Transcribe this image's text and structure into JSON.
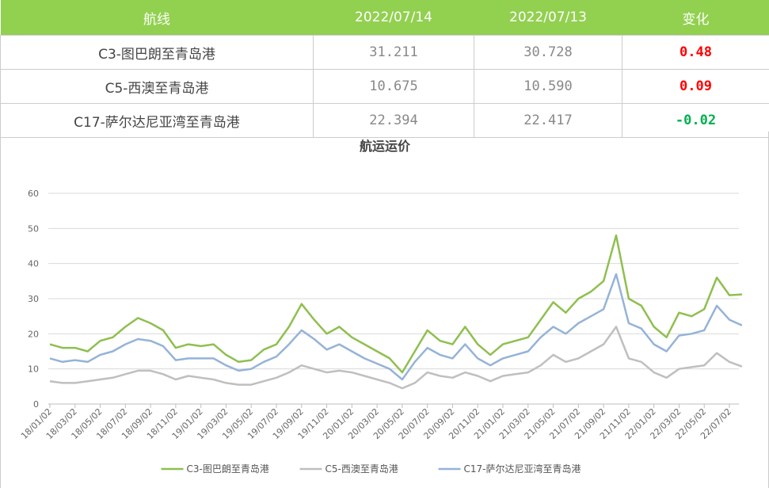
{
  "table": {
    "header": [
      "航线",
      "2022/07/14",
      "2022/07/13",
      "变化"
    ],
    "rows": [
      [
        "C3-图巴朗至青岛港",
        "31.211",
        "30.728",
        "0.48"
      ],
      [
        "C5-西澳至青岛港",
        "10.675",
        "10.590",
        "0.09"
      ],
      [
        "C17-萨尔达尼亚湾至青岛港",
        "22.394",
        "22.417",
        "-0.02"
      ]
    ],
    "header_color": "#92d050",
    "change_colors": [
      "#ff0000",
      "#ff0000",
      "#00b050"
    ]
  },
  "chart_data": {
    "type": "line",
    "title": "航运运价",
    "categories": [
      "18/01/02",
      null,
      "18/03/02",
      null,
      "18/05/02",
      null,
      "18/07/02",
      null,
      "18/09/02",
      null,
      "18/11/02",
      null,
      "19/01/02",
      null,
      "19/03/02",
      null,
      "19/05/02",
      null,
      "19/07/02",
      null,
      "19/09/02",
      null,
      "19/11/02",
      null,
      "20/01/02",
      null,
      "20/03/02",
      null,
      "20/05/02",
      null,
      "20/07/02",
      null,
      "20/09/02",
      null,
      "20/11/02",
      null,
      "21/01/02",
      null,
      "21/03/02",
      null,
      "21/05/02",
      null,
      "21/07/02",
      null,
      "21/09/02",
      null,
      "21/11/02",
      null,
      "22/01/02",
      null,
      "22/03/02",
      null,
      "22/05/02",
      null,
      "22/07/02",
      null
    ],
    "series": [
      {
        "name": "C3-图巴朗至青岛港",
        "color": "#8fbf4f",
        "values": [
          17,
          16,
          16,
          15,
          18,
          19,
          22,
          24.5,
          23,
          21,
          16,
          17,
          16.5,
          17,
          14,
          12,
          12.5,
          15.5,
          17,
          22,
          28.5,
          24,
          20,
          22,
          19,
          17,
          15,
          13,
          9,
          15,
          21,
          18,
          17,
          22,
          17,
          14,
          17,
          18,
          19,
          24,
          29,
          26,
          30,
          32,
          35,
          48,
          30,
          28,
          22,
          19,
          26,
          25,
          27,
          36,
          31,
          31.211
        ]
      },
      {
        "name": "C5-西澳至青岛港",
        "color": "#bfbfbf",
        "values": [
          6.5,
          6,
          6,
          6.5,
          7,
          7.5,
          8.5,
          9.5,
          9.5,
          8.5,
          7,
          8,
          7.5,
          7,
          6,
          5.5,
          5.5,
          6.5,
          7.5,
          9,
          11,
          10,
          9,
          9.5,
          9,
          8,
          7,
          6,
          4.5,
          6,
          9,
          8,
          7.5,
          9,
          8,
          6.5,
          8,
          8.5,
          9,
          11,
          14,
          12,
          13,
          15,
          17,
          22,
          13,
          12,
          9,
          7.5,
          10,
          10.5,
          11,
          14.5,
          12,
          10.675
        ]
      },
      {
        "name": "C17-萨尔达尼亚湾至青岛港",
        "color": "#95b3d7",
        "values": [
          13,
          12,
          12.5,
          12,
          14,
          15,
          17,
          18.5,
          18,
          16.5,
          12.5,
          13,
          13,
          13,
          11,
          9.5,
          10,
          12,
          13.5,
          17,
          21,
          18.5,
          15.5,
          17,
          15,
          13,
          11.5,
          10,
          7,
          12,
          16,
          14,
          13,
          17,
          13,
          11,
          13,
          14,
          15,
          19,
          22,
          20,
          23,
          25,
          27,
          37,
          23,
          21.5,
          17,
          15,
          19.5,
          20,
          21,
          28,
          24,
          22.394
        ]
      }
    ],
    "ylim": [
      0,
      60
    ],
    "yticks": [
      0,
      10,
      20,
      30,
      40,
      50,
      60
    ],
    "grid": true,
    "legend": "bottom"
  }
}
